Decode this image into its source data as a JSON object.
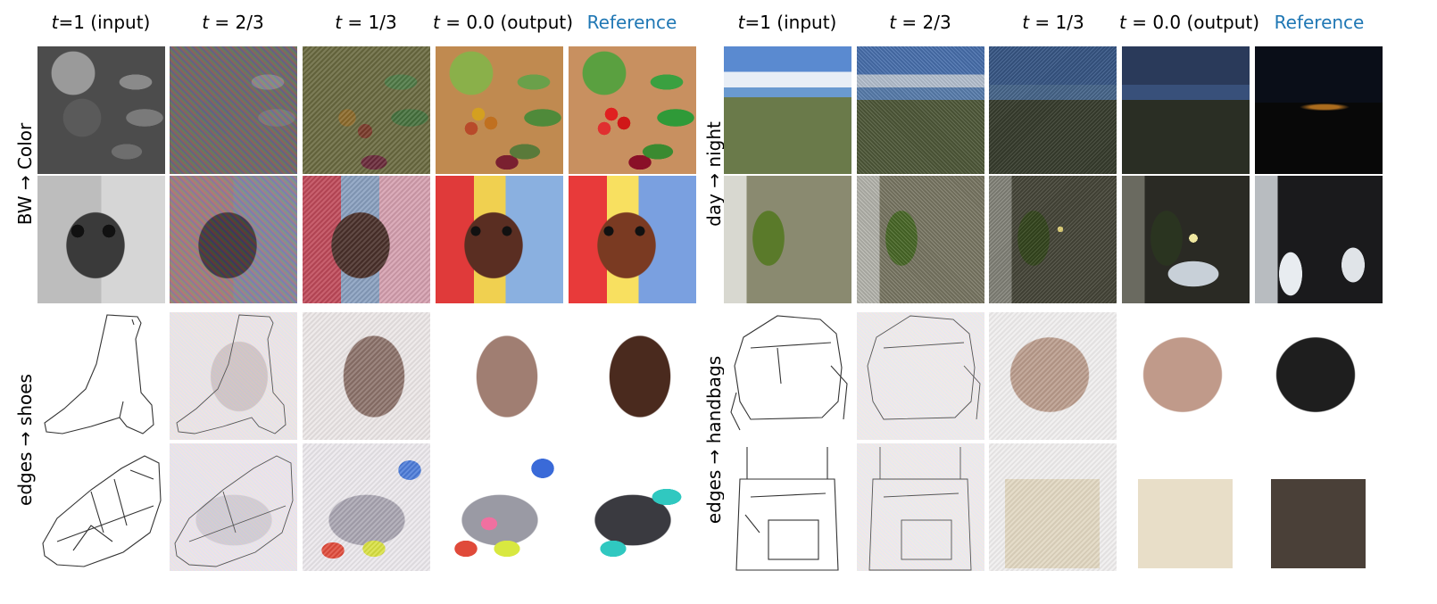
{
  "column_headers": {
    "input_prefix": "t",
    "input_suffix": "=1 (input)",
    "two_thirds_prefix": "t",
    "two_thirds_suffix": " = 2/3",
    "one_third_prefix": "t",
    "one_third_suffix": " = 1/3",
    "output_prefix": "t",
    "output_suffix": " = 0.0 (output)",
    "reference": "Reference"
  },
  "left_panel": {
    "rows": [
      {
        "label": "BW → Color"
      },
      {
        "label": "edges → shoes"
      }
    ]
  },
  "right_panel": {
    "rows": [
      {
        "label": "day → night"
      },
      {
        "label": "edges → handbags"
      }
    ]
  },
  "colors": {
    "reference_header": "#1f77b4",
    "text": "#000000"
  }
}
